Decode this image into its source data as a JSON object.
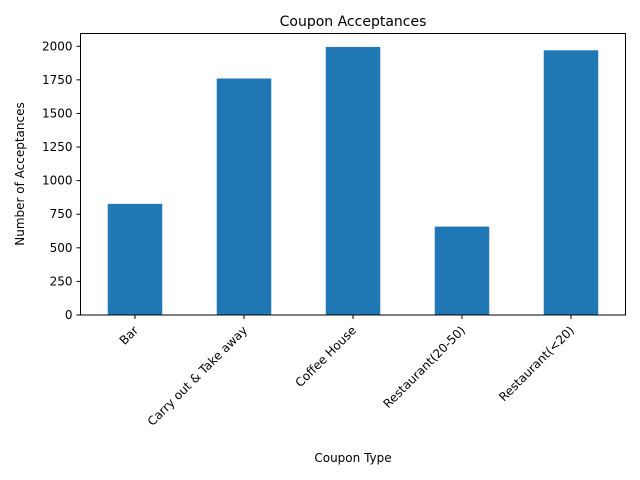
{
  "chart_data": {
    "type": "bar",
    "title": "Coupon Acceptances",
    "xlabel": "Coupon Type",
    "ylabel": "Number of Acceptances",
    "categories": [
      "Bar",
      "Carry out & Take away",
      "Coffee House",
      "Restaurant(20-50)",
      "Restaurant(<20)"
    ],
    "values": [
      827,
      1760,
      1995,
      658,
      1970
    ],
    "ylim": [
      0,
      2095
    ],
    "yticks": [
      0,
      250,
      500,
      750,
      1000,
      1250,
      1500,
      1750,
      2000
    ],
    "grid": false,
    "bar_color": "#1f77b4"
  }
}
